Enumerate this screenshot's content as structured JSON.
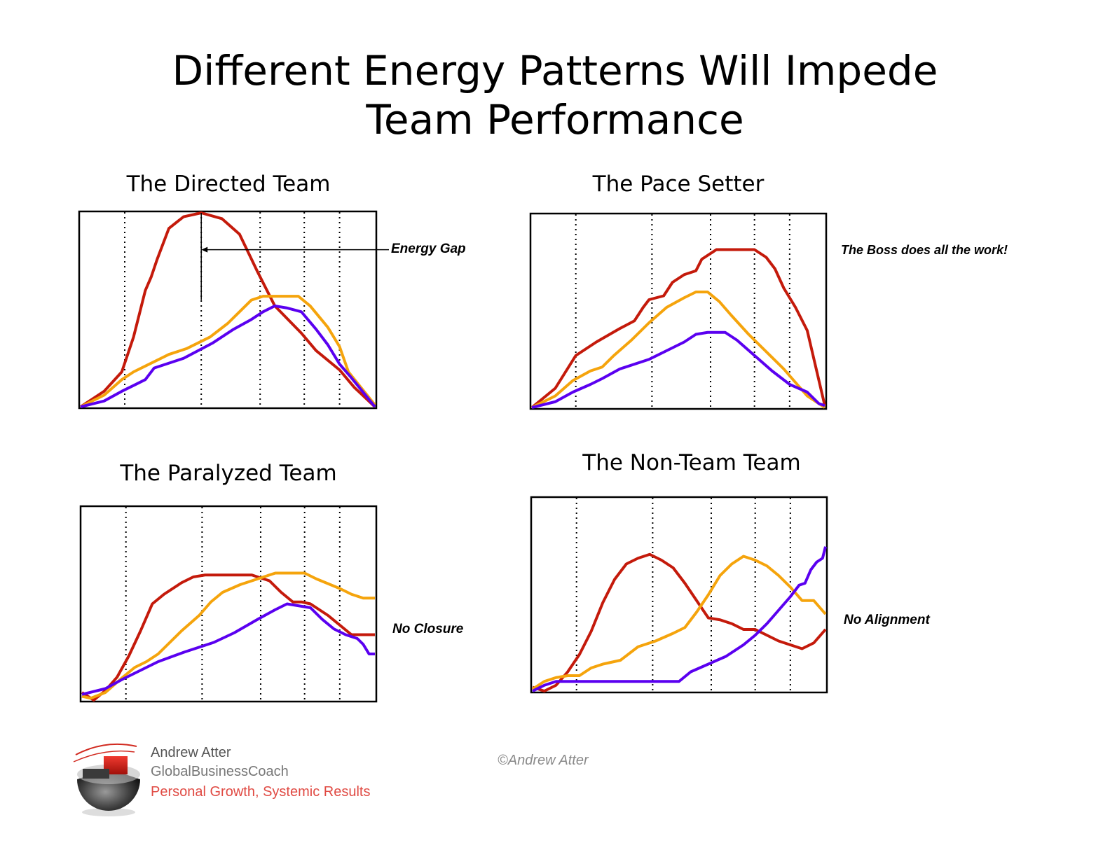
{
  "title_line1": "Different Energy Patterns Will Impede",
  "title_line2": "Team Performance",
  "colors": {
    "leader": "#c41a0b",
    "mid": "#f5a40c",
    "team": "#5a00f0"
  },
  "footer": {
    "name": "Andrew Atter",
    "company": "GlobalBusinessCoach",
    "tagline": "Personal Growth, Systemic Results",
    "copyright": "©Andrew Atter"
  },
  "chart_data": [
    {
      "type": "line",
      "title": "The Directed Team",
      "annotation": "Energy Gap",
      "xlim": [
        0,
        100
      ],
      "ylim": [
        0,
        100
      ],
      "grid": "vertical dotted",
      "vlines": [
        15,
        41,
        61,
        76,
        88
      ],
      "series": [
        {
          "color": "#c41a0b",
          "points": [
            [
              0,
              0
            ],
            [
              8,
              8
            ],
            [
              14,
              18
            ],
            [
              18,
              36
            ],
            [
              22,
              60
            ],
            [
              24,
              67
            ],
            [
              26,
              76
            ],
            [
              30,
              92
            ],
            [
              35,
              98
            ],
            [
              41,
              100
            ],
            [
              48,
              97
            ],
            [
              54,
              89
            ],
            [
              60,
              70
            ],
            [
              66,
              52
            ],
            [
              75,
              38
            ],
            [
              80,
              29
            ],
            [
              88,
              19
            ],
            [
              93,
              10
            ],
            [
              100,
              0
            ]
          ]
        },
        {
          "color": "#f5a40c",
          "points": [
            [
              0,
              0
            ],
            [
              8,
              6
            ],
            [
              14,
              14
            ],
            [
              18,
              18
            ],
            [
              22,
              21
            ],
            [
              30,
              27
            ],
            [
              36,
              30
            ],
            [
              44,
              36
            ],
            [
              50,
              43
            ],
            [
              54,
              49
            ],
            [
              58,
              55
            ],
            [
              62,
              57
            ],
            [
              68,
              57
            ],
            [
              74,
              57
            ],
            [
              78,
              52
            ],
            [
              84,
              41
            ],
            [
              88,
              31
            ],
            [
              91,
              18
            ],
            [
              100,
              1
            ]
          ]
        },
        {
          "color": "#5a00f0",
          "points": [
            [
              0,
              0
            ],
            [
              8,
              3
            ],
            [
              14,
              8
            ],
            [
              18,
              11
            ],
            [
              22,
              14
            ],
            [
              25,
              20
            ],
            [
              35,
              25
            ],
            [
              45,
              33
            ],
            [
              52,
              40
            ],
            [
              58,
              45
            ],
            [
              62,
              49
            ],
            [
              66,
              52
            ],
            [
              70,
              51
            ],
            [
              75,
              49
            ],
            [
              80,
              40
            ],
            [
              84,
              32
            ],
            [
              88,
              22
            ],
            [
              92,
              15
            ],
            [
              100,
              0
            ]
          ]
        }
      ]
    },
    {
      "type": "line",
      "title": "The Pace Setter",
      "annotation": "The Boss does all the work!",
      "xlim": [
        0,
        100
      ],
      "ylim": [
        0,
        100
      ],
      "grid": "vertical dotted",
      "vlines": [
        15,
        41,
        61,
        76,
        88
      ],
      "series": [
        {
          "color": "#c41a0b",
          "points": [
            [
              0,
              0
            ],
            [
              8,
              10
            ],
            [
              15,
              27
            ],
            [
              22,
              34
            ],
            [
              30,
              41
            ],
            [
              35,
              45
            ],
            [
              38,
              52
            ],
            [
              40,
              56
            ],
            [
              45,
              58
            ],
            [
              48,
              65
            ],
            [
              52,
              69
            ],
            [
              56,
              71
            ],
            [
              58,
              77
            ],
            [
              63,
              82
            ],
            [
              70,
              82
            ],
            [
              76,
              82
            ],
            [
              80,
              78
            ],
            [
              83,
              72
            ],
            [
              86,
              62
            ],
            [
              90,
              52
            ],
            [
              94,
              40
            ],
            [
              100,
              1
            ]
          ]
        },
        {
          "color": "#f5a40c",
          "points": [
            [
              0,
              0
            ],
            [
              8,
              6
            ],
            [
              14,
              14
            ],
            [
              20,
              19
            ],
            [
              24,
              21
            ],
            [
              28,
              27
            ],
            [
              34,
              35
            ],
            [
              40,
              44
            ],
            [
              46,
              52
            ],
            [
              52,
              57
            ],
            [
              56,
              60
            ],
            [
              60,
              60
            ],
            [
              64,
              55
            ],
            [
              68,
              48
            ],
            [
              74,
              38
            ],
            [
              80,
              29
            ],
            [
              86,
              20
            ],
            [
              90,
              13
            ],
            [
              94,
              6
            ],
            [
              100,
              0
            ]
          ]
        },
        {
          "color": "#5a00f0",
          "points": [
            [
              0,
              0
            ],
            [
              8,
              3
            ],
            [
              14,
              8
            ],
            [
              20,
              12
            ],
            [
              24,
              15
            ],
            [
              30,
              20
            ],
            [
              40,
              25
            ],
            [
              48,
              31
            ],
            [
              52,
              34
            ],
            [
              56,
              38
            ],
            [
              60,
              39
            ],
            [
              66,
              39
            ],
            [
              70,
              35
            ],
            [
              76,
              27
            ],
            [
              82,
              19
            ],
            [
              88,
              12
            ],
            [
              94,
              8
            ],
            [
              98,
              2
            ],
            [
              100,
              1
            ]
          ]
        }
      ]
    },
    {
      "type": "line",
      "title": "The Paralyzed Team",
      "annotation": "No Closure",
      "xlim": [
        0,
        100
      ],
      "ylim": [
        0,
        100
      ],
      "grid": "vertical dotted",
      "vlines": [
        15,
        41,
        61,
        76,
        88
      ],
      "series": [
        {
          "color": "#c41a0b",
          "points": [
            [
              0,
              4
            ],
            [
              4,
              0
            ],
            [
              8,
              5
            ],
            [
              12,
              12
            ],
            [
              16,
              23
            ],
            [
              20,
              36
            ],
            [
              24,
              50
            ],
            [
              28,
              55
            ],
            [
              34,
              61
            ],
            [
              38,
              64
            ],
            [
              42,
              65
            ],
            [
              50,
              65
            ],
            [
              58,
              65
            ],
            [
              64,
              62
            ],
            [
              68,
              56
            ],
            [
              72,
              51
            ],
            [
              75,
              51
            ],
            [
              78,
              50
            ],
            [
              84,
              44
            ],
            [
              88,
              39
            ],
            [
              92,
              34
            ],
            [
              100,
              34
            ]
          ]
        },
        {
          "color": "#f5a40c",
          "points": [
            [
              0,
              2
            ],
            [
              3,
              1
            ],
            [
              8,
              4
            ],
            [
              14,
              12
            ],
            [
              18,
              17
            ],
            [
              22,
              20
            ],
            [
              26,
              24
            ],
            [
              30,
              30
            ],
            [
              34,
              36
            ],
            [
              40,
              44
            ],
            [
              44,
              51
            ],
            [
              48,
              56
            ],
            [
              54,
              60
            ],
            [
              60,
              63
            ],
            [
              66,
              66
            ],
            [
              72,
              66
            ],
            [
              76,
              66
            ],
            [
              80,
              63
            ],
            [
              88,
              58
            ],
            [
              92,
              55
            ],
            [
              96,
              53
            ],
            [
              100,
              53
            ]
          ]
        },
        {
          "color": "#5a00f0",
          "points": [
            [
              0,
              3
            ],
            [
              8,
              6
            ],
            [
              14,
              11
            ],
            [
              18,
              14
            ],
            [
              22,
              17
            ],
            [
              26,
              20
            ],
            [
              35,
              25
            ],
            [
              45,
              30
            ],
            [
              52,
              35
            ],
            [
              60,
              42
            ],
            [
              66,
              47
            ],
            [
              70,
              50
            ],
            [
              74,
              49
            ],
            [
              78,
              48
            ],
            [
              82,
              42
            ],
            [
              86,
              37
            ],
            [
              90,
              34
            ],
            [
              94,
              32
            ],
            [
              96,
              29
            ],
            [
              98,
              24
            ],
            [
              100,
              24
            ]
          ]
        }
      ]
    },
    {
      "type": "line",
      "title": "The Non-Team Team",
      "annotation": "No Alignment",
      "xlim": [
        0,
        100
      ],
      "ylim": [
        0,
        100
      ],
      "grid": "vertical dotted",
      "vlines": [
        15,
        41,
        61,
        76,
        88
      ],
      "series": [
        {
          "color": "#c41a0b",
          "points": [
            [
              0,
              2
            ],
            [
              4,
              0
            ],
            [
              8,
              3
            ],
            [
              12,
              10
            ],
            [
              16,
              19
            ],
            [
              20,
              31
            ],
            [
              24,
              46
            ],
            [
              28,
              58
            ],
            [
              32,
              66
            ],
            [
              36,
              69
            ],
            [
              40,
              71
            ],
            [
              44,
              68
            ],
            [
              48,
              64
            ],
            [
              52,
              56
            ],
            [
              56,
              47
            ],
            [
              60,
              38
            ],
            [
              64,
              37
            ],
            [
              68,
              35
            ],
            [
              72,
              32
            ],
            [
              76,
              32
            ],
            [
              80,
              29
            ],
            [
              84,
              26
            ],
            [
              88,
              24
            ],
            [
              92,
              22
            ],
            [
              96,
              25
            ],
            [
              100,
              32
            ]
          ]
        },
        {
          "color": "#f5a40c",
          "points": [
            [
              0,
              1
            ],
            [
              4,
              5
            ],
            [
              8,
              7
            ],
            [
              12,
              8
            ],
            [
              16,
              8
            ],
            [
              20,
              12
            ],
            [
              24,
              14
            ],
            [
              30,
              16
            ],
            [
              36,
              23
            ],
            [
              42,
              26
            ],
            [
              48,
              30
            ],
            [
              52,
              33
            ],
            [
              56,
              41
            ],
            [
              60,
              50
            ],
            [
              64,
              60
            ],
            [
              68,
              66
            ],
            [
              72,
              70
            ],
            [
              76,
              68
            ],
            [
              80,
              65
            ],
            [
              84,
              60
            ],
            [
              88,
              54
            ],
            [
              92,
              47
            ],
            [
              96,
              47
            ],
            [
              100,
              40
            ]
          ]
        },
        {
          "color": "#5a00f0",
          "points": [
            [
              0,
              0
            ],
            [
              4,
              3
            ],
            [
              8,
              5
            ],
            [
              14,
              5
            ],
            [
              22,
              5
            ],
            [
              30,
              5
            ],
            [
              40,
              5
            ],
            [
              50,
              5
            ],
            [
              54,
              10
            ],
            [
              60,
              14
            ],
            [
              66,
              18
            ],
            [
              72,
              24
            ],
            [
              76,
              29
            ],
            [
              80,
              35
            ],
            [
              84,
              42
            ],
            [
              88,
              49
            ],
            [
              91,
              55
            ],
            [
              93,
              56
            ],
            [
              95,
              63
            ],
            [
              97,
              67
            ],
            [
              99,
              69
            ],
            [
              100,
              75
            ]
          ]
        }
      ]
    }
  ]
}
